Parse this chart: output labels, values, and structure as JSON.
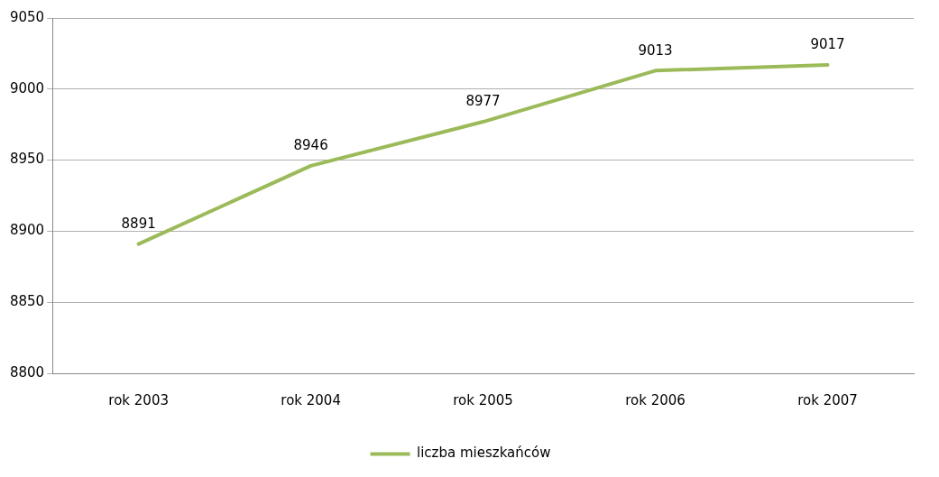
{
  "chart_data": {
    "type": "line",
    "categories": [
      "rok 2003",
      "rok 2004",
      "rok 2005",
      "rok 2006",
      "rok 2007"
    ],
    "series": [
      {
        "name": "liczba mieszkańców",
        "color": "#9bbb59",
        "values": [
          8891,
          8946,
          8977,
          9013,
          9017
        ]
      }
    ],
    "ylim": [
      8800,
      9050
    ],
    "yticks": [
      8800,
      8850,
      8900,
      8950,
      9000,
      9050
    ],
    "grid": "y",
    "legend": "bottom",
    "data_labels": true,
    "marker": "none",
    "line_style": "solid"
  }
}
